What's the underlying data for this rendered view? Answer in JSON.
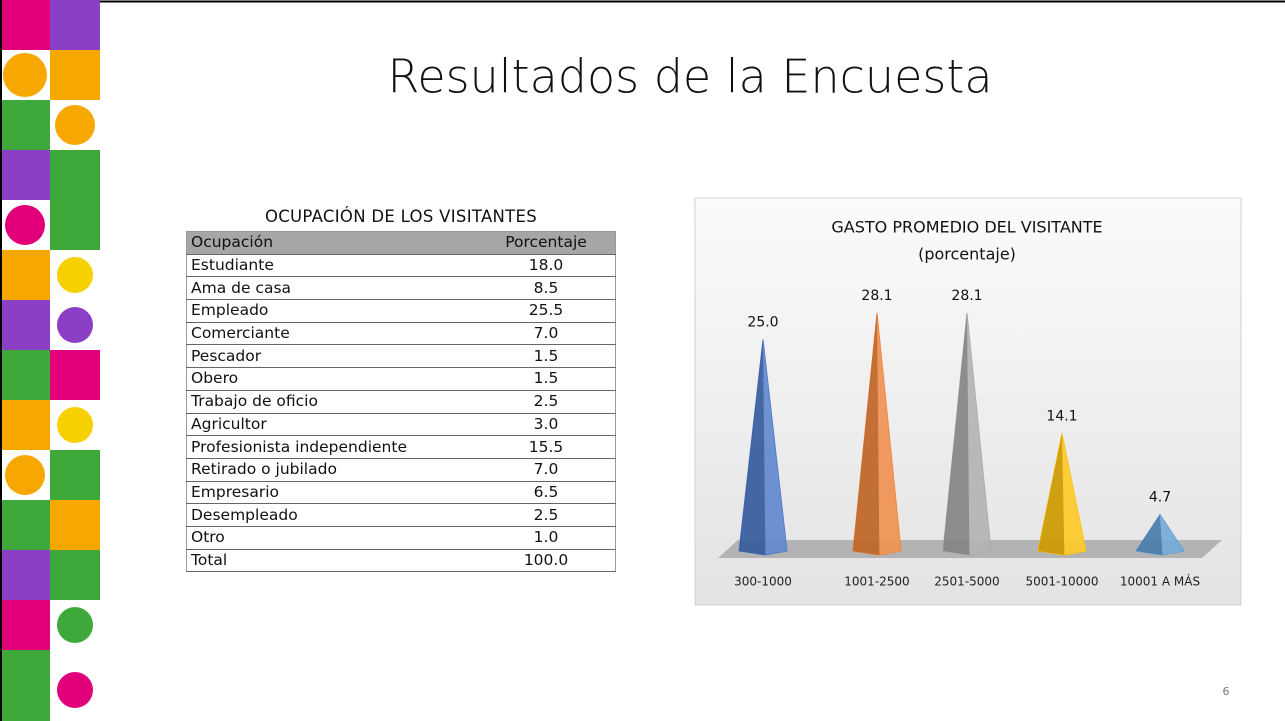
{
  "slide": {
    "title": "Resultados de la Encuesta",
    "page_number": "6"
  },
  "table": {
    "title": "OCUPACIÓN DE LOS VISITANTES",
    "header": [
      "Ocupación",
      "Porcentaje"
    ],
    "rows": [
      [
        "Estudiante",
        "18.0"
      ],
      [
        "Ama de casa",
        "8.5"
      ],
      [
        "Empleado",
        "25.5"
      ],
      [
        "Comerciante",
        "7.0"
      ],
      [
        "Pescador",
        "1.5"
      ],
      [
        "Obero",
        "1.5"
      ],
      [
        "Trabajo de oficio",
        "2.5"
      ],
      [
        "Agricultor",
        "3.0"
      ],
      [
        "Profesionista independiente",
        "15.5"
      ],
      [
        "Retirado o jubilado",
        "7.0"
      ],
      [
        "Empresario",
        "6.5"
      ],
      [
        "Desempleado",
        "2.5"
      ],
      [
        "Otro",
        "1.0"
      ],
      [
        "Total",
        "100.0"
      ]
    ]
  },
  "chart_data": {
    "type": "pyramid",
    "title": "GASTO PROMEDIO DEL VISITANTE",
    "subtitle": "(porcentaje)",
    "categories": [
      "300-1000",
      "1001-2500",
      "2501-5000",
      "5001-10000",
      "10001 A MÁS"
    ],
    "values": [
      25.0,
      28.1,
      28.1,
      14.1,
      4.7
    ],
    "value_labels": [
      "25.0",
      "28.1",
      "28.1",
      "14.1",
      "4.7"
    ],
    "colors": [
      "#4472c4",
      "#ed7d31",
      "#a5a5a5",
      "#ffc000",
      "#5b9bd5"
    ]
  }
}
